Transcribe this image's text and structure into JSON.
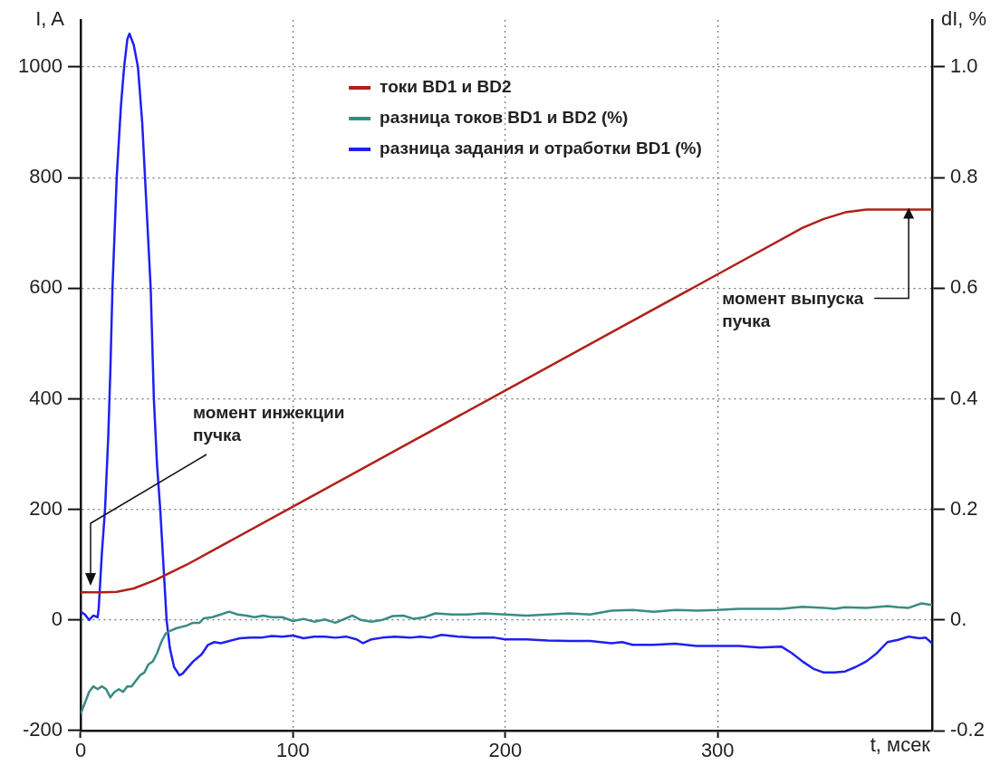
{
  "chart_data": {
    "type": "line",
    "xlabel": "t, мсек",
    "ylabel": "I, A",
    "y2label": "dI, %",
    "xlim": [
      0,
      401
    ],
    "xticks": [
      0,
      100,
      200,
      300
    ],
    "ylim": [
      -200,
      1085
    ],
    "yticks": [
      -200,
      0,
      200,
      400,
      600,
      800,
      1000
    ],
    "y2lim": [
      -0.2,
      1.085
    ],
    "y2ticks": [
      -0.2,
      {
        "value": 0,
        "label": "0."
      },
      0.2,
      0.4,
      0.6,
      0.8,
      {
        "value": 1,
        "label": "1.0"
      }
    ],
    "grid": true,
    "legend": "top",
    "line_style": "solid",
    "series": [
      {
        "name": "токи BD1 и BD2",
        "color": "#b0201a",
        "x": [
          0,
          10,
          17,
          25,
          35,
          50,
          100,
          150,
          200,
          250,
          300,
          340,
          350,
          360,
          370,
          385,
          401
        ],
        "values": [
          50,
          50,
          51,
          57,
          72,
          100,
          205,
          310,
          415,
          520,
          625,
          709,
          725,
          737,
          742,
          742,
          742
        ]
      },
      {
        "name": "разница токов BD1 и BD2 (%)",
        "color": "#3a8c84",
        "axis": "y2",
        "x": [
          0,
          2,
          4,
          6,
          8,
          10,
          12,
          14,
          16,
          18,
          20,
          22,
          24,
          26,
          28,
          30,
          32,
          34,
          36,
          38,
          40,
          42,
          45,
          48,
          50,
          53,
          56,
          58,
          62,
          66,
          70,
          74,
          78,
          82,
          86,
          90,
          95,
          100,
          105,
          110,
          115,
          120,
          125,
          128,
          132,
          137,
          142,
          147,
          152,
          157,
          162,
          167,
          175,
          182,
          190,
          200,
          210,
          220,
          230,
          240,
          250,
          260,
          270,
          280,
          290,
          300,
          310,
          320,
          330,
          340,
          350,
          355,
          360,
          370,
          380,
          385,
          390,
          396,
          401
        ],
        "values": [
          -0.17,
          -0.15,
          -0.13,
          -0.12,
          -0.125,
          -0.12,
          -0.125,
          -0.14,
          -0.13,
          -0.125,
          -0.13,
          -0.12,
          -0.12,
          -0.11,
          -0.1,
          -0.095,
          -0.08,
          -0.075,
          -0.06,
          -0.04,
          -0.025,
          -0.02,
          -0.015,
          -0.012,
          -0.01,
          -0.005,
          -0.005,
          0.003,
          0.005,
          0.01,
          0.015,
          0.01,
          0.008,
          0.005,
          0.008,
          0.005,
          0.005,
          -0.002,
          0.002,
          -0.003,
          0.001,
          -0.005,
          0.003,
          0.008,
          0,
          -0.003,
          0,
          0.007,
          0.008,
          0.002,
          0.005,
          0.012,
          0.01,
          0.01,
          0.012,
          0.01,
          0.008,
          0.01,
          0.012,
          0.01,
          0.017,
          0.018,
          0.015,
          0.018,
          0.017,
          0.018,
          0.02,
          0.02,
          0.02,
          0.024,
          0.022,
          0.02,
          0.023,
          0.022,
          0.025,
          0.023,
          0.022,
          0.03,
          0.027
        ]
      },
      {
        "name": "разница задания и отработки BD1 (%)",
        "color": "#2020f0",
        "axis": "y2",
        "x": [
          0,
          2,
          4,
          6,
          8,
          8.5,
          10,
          11.5,
          13,
          14,
          15,
          17,
          19,
          20.5,
          22,
          23,
          25,
          27,
          29,
          31,
          33,
          34.5,
          36,
          37.5,
          39,
          40.5,
          42,
          44,
          46.5,
          48,
          50,
          53,
          57,
          60,
          63,
          66,
          70,
          75,
          80,
          85,
          90,
          95,
          100,
          105,
          110,
          115,
          120,
          125,
          130,
          133,
          137,
          142,
          148,
          155,
          160,
          165,
          170,
          178,
          185,
          195,
          200,
          210,
          220,
          230,
          240,
          250,
          255,
          260,
          270,
          280,
          290,
          300,
          310,
          320,
          330,
          335,
          340,
          345,
          350,
          355,
          360,
          365,
          370,
          375,
          380,
          385,
          390,
          395,
          398,
          401
        ],
        "values": [
          0.015,
          0.01,
          0,
          0.008,
          0.005,
          0.02,
          0.12,
          0.2,
          0.33,
          0.45,
          0.6,
          0.8,
          0.93,
          1.0,
          1.05,
          1.06,
          1.04,
          1.0,
          0.9,
          0.75,
          0.6,
          0.4,
          0.28,
          0.2,
          0.1,
          0,
          -0.05,
          -0.085,
          -0.1,
          -0.097,
          -0.088,
          -0.075,
          -0.062,
          -0.045,
          -0.04,
          -0.042,
          -0.038,
          -0.033,
          -0.032,
          -0.032,
          -0.029,
          -0.03,
          -0.028,
          -0.033,
          -0.03,
          -0.03,
          -0.032,
          -0.03,
          -0.035,
          -0.042,
          -0.035,
          -0.032,
          -0.03,
          -0.032,
          -0.03,
          -0.032,
          -0.027,
          -0.03,
          -0.032,
          -0.032,
          -0.035,
          -0.035,
          -0.037,
          -0.038,
          -0.038,
          -0.042,
          -0.04,
          -0.045,
          -0.045,
          -0.043,
          -0.047,
          -0.047,
          -0.047,
          -0.05,
          -0.048,
          -0.06,
          -0.075,
          -0.088,
          -0.095,
          -0.095,
          -0.093,
          -0.085,
          -0.075,
          -0.06,
          -0.04,
          -0.036,
          -0.03,
          -0.033,
          -0.032,
          -0.042
        ]
      }
    ],
    "annotations": [
      "момент инжекции\nпучка",
      {
        "text": "момент выпуска\nпучка",
        "x": 390,
        "y": 742
      }
    ]
  }
}
